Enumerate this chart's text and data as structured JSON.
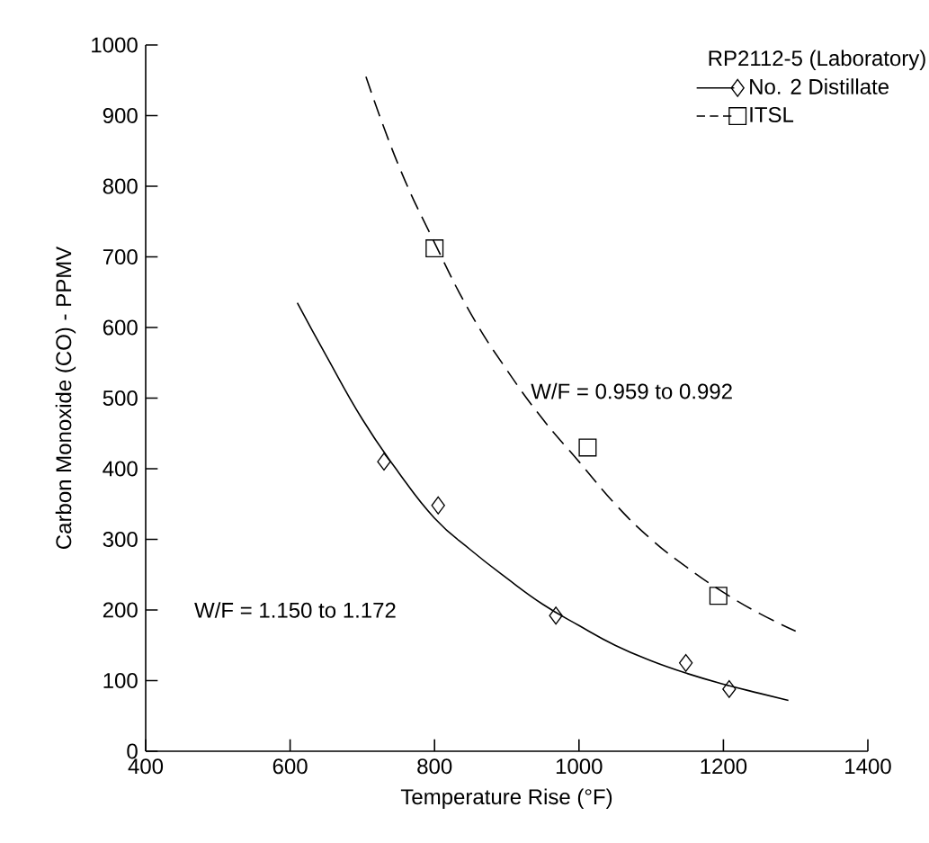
{
  "chart_data": {
    "type": "scatter",
    "xlabel": "Temperature Rise (°F)",
    "ylabel": "Carbon Monoxide (CO) - PPMV",
    "legend_title": "RP2112-5 (Laboratory)",
    "series": [
      {
        "name": "No. 2 Distillate",
        "color": "#000000",
        "marker": "diamond",
        "line_style": "solid",
        "x": [
          730,
          805,
          968,
          1148,
          1208
        ],
        "values": [
          410,
          348,
          192,
          125,
          88
        ]
      },
      {
        "type": "line",
        "color": "#000000",
        "line_style": "solid",
        "marker": "none",
        "x": [
          610,
          650,
          700,
          750,
          800,
          850,
          900,
          950,
          1000,
          1050,
          1100,
          1150,
          1200,
          1250,
          1290
        ],
        "values": [
          635,
          560,
          470,
          395,
          330,
          285,
          245,
          208,
          178,
          150,
          128,
          110,
          95,
          82,
          72
        ]
      },
      {
        "name": "ITSL",
        "color": "#000000",
        "marker": "square",
        "line_style": "dashed",
        "x": [
          800,
          1012,
          1193
        ],
        "values": [
          712,
          430,
          220
        ]
      },
      {
        "type": "line",
        "color": "#000000",
        "line_style": "dashed",
        "marker": "none",
        "x": [
          705,
          750,
          800,
          850,
          900,
          950,
          1000,
          1050,
          1100,
          1150,
          1200,
          1250,
          1300
        ],
        "values": [
          955,
          830,
          720,
          620,
          540,
          470,
          410,
          350,
          300,
          260,
          225,
          195,
          170
        ]
      }
    ],
    "annotations": [
      "W/F = 0.959 to 0.992",
      "W/F = 1.150 to 1.172"
    ],
    "xlim": [
      400,
      1400
    ],
    "xticks": [
      400,
      600,
      800,
      1000,
      1200,
      1400
    ],
    "ylim": [
      0,
      1000
    ],
    "yticks": [
      0,
      100,
      200,
      300,
      400,
      500,
      600,
      700,
      800,
      900,
      1000
    ],
    "grid": false,
    "legend": "top right"
  }
}
